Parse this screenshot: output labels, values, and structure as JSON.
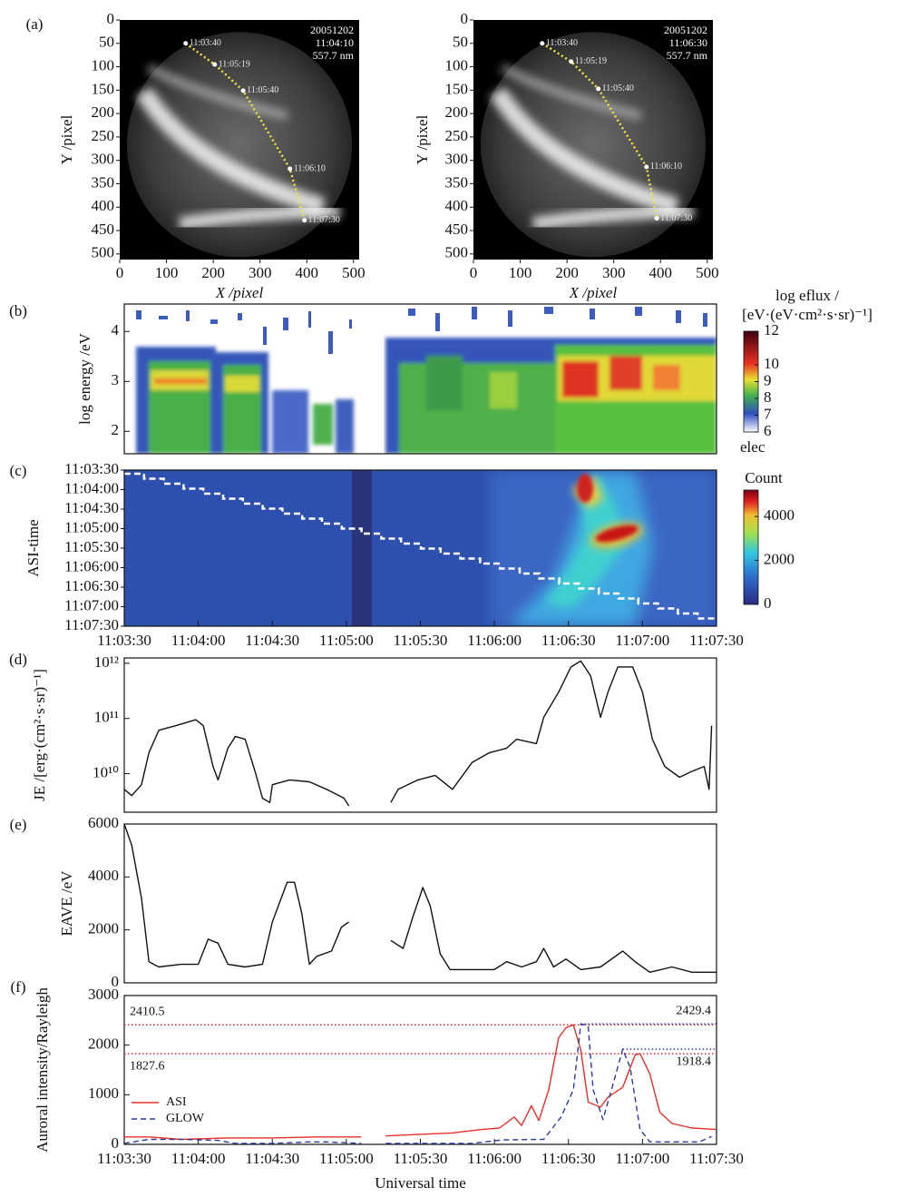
{
  "chart_data": [
    {
      "type": "image",
      "panel": "(a)",
      "xlabel": "X /pixel",
      "ylabel": "Y /pixel",
      "xlim": [
        0,
        512
      ],
      "ylim": [
        512,
        0
      ],
      "xticks": [
        0,
        100,
        200,
        300,
        400,
        500
      ],
      "yticks": [
        0,
        50,
        100,
        150,
        200,
        250,
        300,
        350,
        400,
        450,
        500
      ],
      "annotations": [
        "20051202",
        "11:04:10",
        "557.7 nm"
      ],
      "track": {
        "color": "#f2e33a",
        "x": [
          141,
          203,
          264,
          364,
          395
        ],
        "y": [
          50,
          95,
          151,
          318,
          428
        ],
        "labels": [
          "11:03:40",
          "11:05:19",
          "11:05:40",
          "11:06:10",
          "11:07:30"
        ]
      }
    },
    {
      "type": "image",
      "xlabel": "X /pixel",
      "ylabel": "Y /pixel",
      "xlim": [
        0,
        512
      ],
      "ylim": [
        512,
        0
      ],
      "xticks": [
        0,
        100,
        200,
        300,
        400,
        500
      ],
      "yticks": [
        0,
        50,
        100,
        150,
        200,
        250,
        300,
        350,
        400,
        450,
        500
      ],
      "annotations": [
        "20051202",
        "11:06:30",
        "557.7 nm"
      ],
      "track": {
        "color": "#f2e33a",
        "x": [
          147,
          209,
          267,
          370,
          392
        ],
        "y": [
          50,
          89,
          147,
          314,
          424
        ],
        "labels": [
          "11:03:40",
          "11:05:19",
          "11:05:40",
          "11:06:10",
          "11:07:30"
        ]
      }
    },
    {
      "type": "spectrogram",
      "panel": "(b)",
      "ylabel": "log energy /eV",
      "ylim": [
        1.55,
        4.55
      ],
      "yticks": [
        2,
        3,
        4
      ],
      "colorbar": {
        "title": [
          "log eflux /",
          "[eV·(eV·cm²·s·sr)⁻¹]"
        ],
        "lim": [
          6,
          12
        ],
        "ticks": [
          6,
          7,
          8,
          9,
          10,
          12
        ],
        "label": "elec"
      }
    },
    {
      "type": "heatmap",
      "panel": "(c)",
      "ylabel": "ASI-time",
      "ylim": [
        "11:03:30",
        "11:07:30"
      ],
      "yticks": [
        "11:03:30",
        "11:04:00",
        "11:04:30",
        "11:05:00",
        "11:05:30",
        "11:06:00",
        "11:06:30",
        "11:07:00",
        "11:07:30"
      ],
      "xlim": [
        "11:03:30",
        "11:07:30"
      ],
      "xticks": [
        "11:03:30",
        "11:04:00",
        "11:04:30",
        "11:05:00",
        "11:05:30",
        "11:06:00",
        "11:06:30",
        "11:07:00",
        "11:07:30"
      ],
      "colorbar": {
        "title": "Count",
        "lim": [
          0,
          5200
        ],
        "ticks": [
          0,
          2000,
          4000
        ]
      }
    },
    {
      "type": "line",
      "panel": "(d)",
      "ylabel": "JE /[erg·(cm²·s·sr)⁻¹]",
      "log": true,
      "xlim": [
        "11:03:30",
        "11:07:30"
      ],
      "ylim": [
        2000000000.0,
        1250000000000.0
      ],
      "yticks": [
        {
          "value": 10000000000.0,
          "label": "10¹⁰"
        },
        {
          "value": 100000000000.0,
          "label": "10¹¹"
        },
        {
          "value": 1000000000000.0,
          "label": "10¹²"
        }
      ],
      "series": [
        {
          "color": "#111111",
          "x": [
            "11:03:30",
            "11:03:33",
            "11:03:37",
            "11:03:40",
            "11:03:44",
            "11:03:51",
            "11:03:59",
            "11:04:02",
            "11:04:06",
            "11:04:08",
            "11:04:12",
            "11:04:15",
            "11:04:19",
            "11:04:23",
            "11:04:26",
            "11:04:29",
            "11:04:30",
            "11:04:37",
            "11:04:45",
            "11:04:52",
            "11:04:59",
            "11:05:01",
            "11:05:10",
            "11:05:18",
            "11:05:21",
            "11:05:29",
            "11:05:36",
            "11:05:43",
            "11:05:51",
            "11:05:58",
            "11:06:05",
            "11:06:09",
            "11:06:17",
            "11:06:20",
            "11:06:26",
            "11:06:31",
            "11:06:35",
            "11:06:39",
            "11:06:43",
            "11:06:46",
            "11:06:50",
            "11:06:56",
            "11:07:00",
            "11:07:04",
            "11:07:09",
            "11:07:15",
            "11:07:20",
            "11:07:25",
            "11:07:27",
            "11:07:28"
          ],
          "values": [
            5200000000.0,
            4000000000.0,
            6300000000.0,
            24000000000.0,
            61000000000.0,
            74000000000.0,
            95000000000.0,
            74000000000.0,
            13500000000.0,
            7700000000.0,
            29000000000.0,
            47000000000.0,
            42000000000.0,
            11000000000.0,
            3600000000.0,
            3000000000.0,
            6300000000.0,
            7700000000.0,
            7100000000.0,
            5200000000.0,
            3600000000.0,
            2600000000.0,
            null,
            3000000000.0,
            5200000000.0,
            7700000000.0,
            9300000000.0,
            5200000000.0,
            16000000000.0,
            24000000000.0,
            29000000000.0,
            42000000000.0,
            35000000000.0,
            105000000000.0,
            300000000000.0,
            860000000000.0,
            1100000000000.0,
            590000000000.0,
            105000000000.0,
            300000000000.0,
            860000000000.0,
            860000000000.0,
            300000000000.0,
            42000000000.0,
            13500000000.0,
            8600000000.0,
            11000000000.0,
            13500000000.0,
            5200000000.0,
            74000000000.0
          ]
        }
      ]
    },
    {
      "type": "line",
      "panel": "(e)",
      "ylabel": "EAVE /eV",
      "xlim": [
        "11:03:30",
        "11:07:30"
      ],
      "ylim": [
        0,
        6000
      ],
      "yticks": [
        0,
        2000,
        4000,
        6000
      ],
      "series": [
        {
          "color": "#111111",
          "x": [
            "11:03:30",
            "11:03:33",
            "11:03:37",
            "11:03:40",
            "11:03:44",
            "11:03:53",
            "11:04:00",
            "11:04:04",
            "11:04:08",
            "11:04:12",
            "11:04:19",
            "11:04:26",
            "11:04:30",
            "11:04:36",
            "11:04:39",
            "11:04:42",
            "11:04:45",
            "11:04:48",
            "11:04:54",
            "11:04:58",
            "11:05:01",
            "11:05:10",
            "11:05:18",
            "11:05:23",
            "11:05:27",
            "11:05:31",
            "11:05:34",
            "11:05:38",
            "11:05:42",
            "11:05:51",
            "11:06:00",
            "11:06:05",
            "11:06:11",
            "11:06:17",
            "11:06:20",
            "11:06:24",
            "11:06:29",
            "11:06:35",
            "11:06:43",
            "11:06:52",
            "11:06:57",
            "11:07:03",
            "11:07:12",
            "11:07:20",
            "11:07:30"
          ],
          "values": [
            6000,
            5200,
            3200,
            800,
            600,
            700,
            700,
            1650,
            1500,
            700,
            600,
            700,
            2300,
            3800,
            3800,
            2600,
            700,
            1000,
            1200,
            2100,
            2300,
            null,
            1600,
            1300,
            2500,
            3600,
            2900,
            1100,
            500,
            500,
            500,
            800,
            600,
            800,
            1300,
            600,
            900,
            500,
            600,
            1200,
            800,
            400,
            600,
            400,
            400
          ]
        }
      ]
    },
    {
      "type": "line",
      "panel": "(f)",
      "ylabel": "Auroral intensity/Rayleigh",
      "xlabel": "Universal time",
      "xlim": [
        "11:03:30",
        "11:07:30"
      ],
      "ylim": [
        0,
        3000
      ],
      "yticks": [
        0,
        1000,
        2000,
        3000
      ],
      "xticks": [
        "11:03:30",
        "11:04:00",
        "11:04:30",
        "11:05:00",
        "11:05:30",
        "11:06:00",
        "11:06:30",
        "11:07:00",
        "11:07:30"
      ],
      "series": [
        {
          "name": "ASI",
          "color": "#e8302a",
          "x": [
            "11:03:30",
            "11:03:40",
            "11:03:53",
            "11:04:12",
            "11:04:30",
            "11:04:48",
            "11:05:06",
            "11:05:11",
            "11:05:16",
            "11:05:29",
            "11:05:43",
            "11:05:55",
            "11:06:02",
            "11:06:08",
            "11:06:11",
            "11:06:15",
            "11:06:18",
            "11:06:22",
            "11:06:26",
            "11:06:29",
            "11:06:32",
            "11:06:35",
            "11:06:38",
            "11:06:43",
            "11:06:46",
            "11:06:52",
            "11:06:57",
            "11:06:59",
            "11:07:03",
            "11:07:07",
            "11:07:12",
            "11:07:20",
            "11:07:30"
          ],
          "values": [
            150,
            150,
            100,
            130,
            130,
            150,
            150,
            null,
            170,
            200,
            230,
            300,
            330,
            550,
            380,
            780,
            480,
            1100,
            2150,
            2350,
            2410,
            1900,
            850,
            750,
            950,
            1150,
            1800,
            1830,
            1420,
            650,
            420,
            330,
            300
          ]
        },
        {
          "name": "GLOW",
          "color": "#2a3aa0",
          "dash": true,
          "x": [
            "11:03:30",
            "11:03:40",
            "11:03:53",
            "11:04:08",
            "11:04:15",
            "11:04:30",
            "11:04:45",
            "11:04:52",
            "11:05:06",
            "11:05:11",
            "11:05:16",
            "11:05:51",
            "11:06:03",
            "11:06:20",
            "11:06:27",
            "11:06:32",
            "11:06:35",
            "11:06:38",
            "11:06:40",
            "11:06:44",
            "11:06:48",
            "11:06:52",
            "11:06:55",
            "11:06:59",
            "11:07:03",
            "11:07:23",
            "11:07:28"
          ],
          "values": [
            20,
            100,
            100,
            80,
            20,
            20,
            50,
            50,
            20,
            null,
            20,
            20,
            90,
            100,
            550,
            1100,
            2429,
            2380,
            1100,
            500,
            1200,
            1918,
            1550,
            300,
            50,
            50,
            160
          ]
        }
      ],
      "hlines": [
        {
          "value": 2410.5,
          "color": "#e8302a"
        },
        {
          "value": 1827.6,
          "color": "#e8302a"
        },
        {
          "value": 2429.4,
          "color": "#2a3aa0",
          "x_start": "11:06:35"
        },
        {
          "value": 1918.4,
          "color": "#2a3aa0",
          "x_start": "11:06:52"
        }
      ]
    }
  ]
}
